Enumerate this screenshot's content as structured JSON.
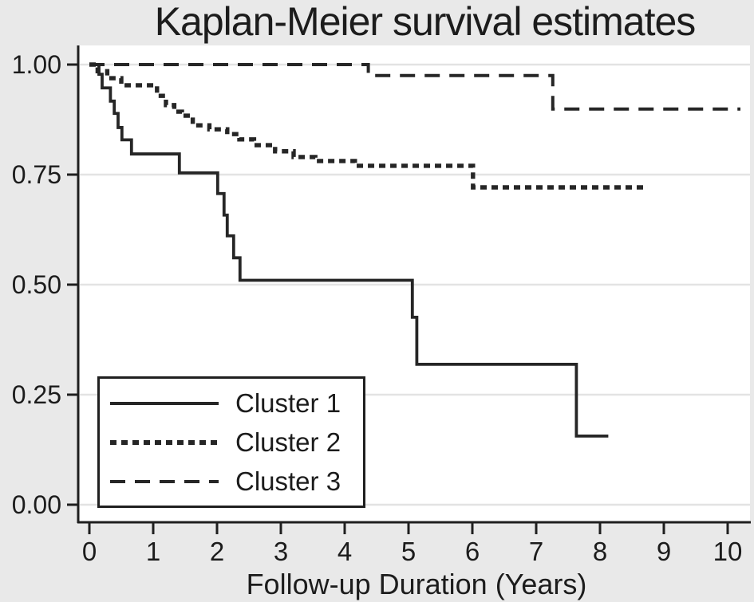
{
  "title": "Kaplan-Meier survival estimates",
  "legend": {
    "items": [
      {
        "label": "Cluster 1",
        "style": "solid"
      },
      {
        "label": "Cluster 2",
        "style": "dotted"
      },
      {
        "label": "Cluster 3",
        "style": "dashed"
      }
    ]
  },
  "chart_data": {
    "type": "line",
    "subtype": "kaplan-meier-step",
    "title": "Kaplan-Meier survival estimates",
    "xlabel": "Follow-up Duration (Years)",
    "ylabel": "",
    "xlim": [
      0,
      10.35
    ],
    "ylim": [
      0.0,
      1.0
    ],
    "grid": "horizontal",
    "legend_position": "inside-bottom-left",
    "xticks": {
      "values": [
        0,
        1,
        2,
        3,
        4,
        5,
        6,
        7,
        8,
        9,
        10
      ],
      "labels": [
        "0",
        "1",
        "2",
        "3",
        "4",
        "5",
        "6",
        "7",
        "8",
        "9",
        "10"
      ]
    },
    "yticks": {
      "values": [
        0.0,
        0.25,
        0.5,
        0.75,
        1.0
      ],
      "labels": [
        "0.00",
        "0.25",
        "0.50",
        "0.75",
        "1.00"
      ]
    },
    "series": [
      {
        "name": "Cluster 1",
        "style": "solid",
        "steps": [
          [
            0.0,
            1.0
          ],
          [
            0.15,
            0.978
          ],
          [
            0.2,
            0.947
          ],
          [
            0.33,
            0.917
          ],
          [
            0.39,
            0.889
          ],
          [
            0.45,
            0.857
          ],
          [
            0.51,
            0.829
          ],
          [
            0.66,
            0.797
          ],
          [
            1.41,
            0.754
          ],
          [
            2.01,
            0.707
          ],
          [
            2.11,
            0.658
          ],
          [
            2.16,
            0.611
          ],
          [
            2.26,
            0.561
          ],
          [
            2.36,
            0.51
          ],
          [
            5.06,
            0.426
          ],
          [
            5.13,
            0.319
          ],
          [
            7.63,
            0.156
          ]
        ],
        "end_x": 8.13
      },
      {
        "name": "Cluster 2",
        "style": "dotted",
        "steps": [
          [
            0.0,
            1.0
          ],
          [
            0.13,
            0.985
          ],
          [
            0.28,
            0.969
          ],
          [
            0.5,
            0.953
          ],
          [
            1.06,
            0.929
          ],
          [
            1.2,
            0.908
          ],
          [
            1.33,
            0.893
          ],
          [
            1.45,
            0.884
          ],
          [
            1.62,
            0.862
          ],
          [
            1.88,
            0.853
          ],
          [
            2.16,
            0.842
          ],
          [
            2.35,
            0.83
          ],
          [
            2.58,
            0.817
          ],
          [
            2.91,
            0.803
          ],
          [
            3.2,
            0.79
          ],
          [
            3.54,
            0.781
          ],
          [
            4.16,
            0.77
          ],
          [
            6.01,
            0.721
          ]
        ],
        "end_x": 8.75
      },
      {
        "name": "Cluster 3",
        "style": "dashed",
        "steps": [
          [
            0.0,
            1.0
          ],
          [
            4.37,
            0.975
          ],
          [
            7.26,
            0.899
          ]
        ],
        "end_x": 10.2
      }
    ]
  },
  "colors": {
    "background": "#e9e9e9",
    "plot_background": "#ffffff",
    "gridline": "#e3e3e3",
    "axis": "#1f1f1f",
    "text": "#1c1c1c",
    "curve": "#262626"
  }
}
